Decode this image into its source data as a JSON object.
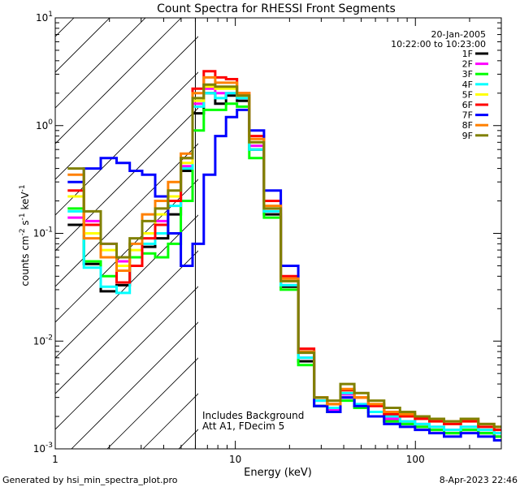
{
  "footer": {
    "generated_by": "Generated by hsi_min_spectra_plot.pro",
    "timestamp": "8-Apr-2023 22:46"
  },
  "chart_data": {
    "type": "line",
    "title": "Count Spectra for RHESSI Front Segments",
    "xlabel": "Energy (keV)",
    "ylabel_parts": [
      "counts cm",
      "-2",
      " s",
      "-1",
      " keV",
      "-1"
    ],
    "xscale": "log",
    "yscale": "log",
    "xlim": [
      1,
      300
    ],
    "ylim": [
      0.001,
      10
    ],
    "x_ticks": [
      {
        "v": 1,
        "label": "1"
      },
      {
        "v": 10,
        "label": "10"
      },
      {
        "v": 100,
        "label": "100"
      }
    ],
    "y_ticks": [
      {
        "v": 0.001,
        "base": "10",
        "exp": "-3"
      },
      {
        "v": 0.01,
        "base": "10",
        "exp": "-2"
      },
      {
        "v": 0.1,
        "base": "10",
        "exp": "-1"
      },
      {
        "v": 1,
        "base": "10",
        "exp": "0"
      },
      {
        "v": 10,
        "base": "10",
        "exp": "1"
      }
    ],
    "date": "20-Jan-2005",
    "time_range": "10:22:00 to 10:23:00",
    "annotations": [
      "Includes Background",
      "Att A1, FDecim 5"
    ],
    "hatched_region_below_keV": 6,
    "legend_position": "top-right",
    "series": [
      {
        "name": "1F",
        "color": "#000000",
        "points": [
          [
            1.3,
            0.12
          ],
          [
            1.6,
            0.052
          ],
          [
            2.0,
            0.029
          ],
          [
            2.4,
            0.033
          ],
          [
            2.8,
            0.05
          ],
          [
            3.3,
            0.075
          ],
          [
            3.9,
            0.09
          ],
          [
            4.6,
            0.15
          ],
          [
            5.4,
            0.38
          ],
          [
            6.2,
            1.3
          ],
          [
            7.2,
            2.0
          ],
          [
            8.3,
            1.6
          ],
          [
            9.5,
            1.9
          ],
          [
            11,
            1.7
          ],
          [
            13,
            0.6
          ],
          [
            16,
            0.15
          ],
          [
            20,
            0.032
          ],
          [
            25,
            0.0065
          ],
          [
            30,
            0.0025
          ],
          [
            35,
            0.0022
          ],
          [
            42,
            0.003
          ],
          [
            50,
            0.0025
          ],
          [
            60,
            0.0022
          ],
          [
            75,
            0.0018
          ],
          [
            90,
            0.0017
          ],
          [
            110,
            0.0016
          ],
          [
            130,
            0.0015
          ],
          [
            160,
            0.0014
          ],
          [
            200,
            0.0015
          ],
          [
            250,
            0.0014
          ],
          [
            300,
            0.0013
          ]
        ]
      },
      {
        "name": "2F",
        "color": "#ff00ff",
        "points": [
          [
            1.3,
            0.14
          ],
          [
            1.6,
            0.13
          ],
          [
            2.0,
            0.08
          ],
          [
            2.4,
            0.055
          ],
          [
            2.8,
            0.06
          ],
          [
            3.3,
            0.1
          ],
          [
            3.9,
            0.13
          ],
          [
            4.6,
            0.2
          ],
          [
            5.4,
            0.42
          ],
          [
            6.2,
            1.6
          ],
          [
            7.2,
            2.2
          ],
          [
            8.3,
            2.0
          ],
          [
            9.5,
            2.0
          ],
          [
            11,
            1.8
          ],
          [
            13,
            0.65
          ],
          [
            16,
            0.16
          ],
          [
            20,
            0.033
          ],
          [
            25,
            0.007
          ],
          [
            30,
            0.0028
          ],
          [
            35,
            0.0023
          ],
          [
            42,
            0.0032
          ],
          [
            50,
            0.0026
          ],
          [
            60,
            0.0022
          ],
          [
            75,
            0.0019
          ],
          [
            90,
            0.0018
          ],
          [
            110,
            0.0017
          ],
          [
            130,
            0.0016
          ],
          [
            160,
            0.0015
          ],
          [
            200,
            0.0016
          ],
          [
            250,
            0.0015
          ],
          [
            300,
            0.0014
          ]
        ]
      },
      {
        "name": "3F",
        "color": "#00ff00",
        "points": [
          [
            1.3,
            0.17
          ],
          [
            1.6,
            0.055
          ],
          [
            2.0,
            0.04
          ],
          [
            2.4,
            0.045
          ],
          [
            2.8,
            0.06
          ],
          [
            3.3,
            0.065
          ],
          [
            3.9,
            0.06
          ],
          [
            4.6,
            0.08
          ],
          [
            5.4,
            0.2
          ],
          [
            6.2,
            0.9
          ],
          [
            7.2,
            1.4
          ],
          [
            8.3,
            1.4
          ],
          [
            9.5,
            1.6
          ],
          [
            11,
            1.5
          ],
          [
            13,
            0.5
          ],
          [
            16,
            0.14
          ],
          [
            20,
            0.03
          ],
          [
            25,
            0.006
          ],
          [
            30,
            0.0025
          ],
          [
            35,
            0.0022
          ],
          [
            42,
            0.0028
          ],
          [
            50,
            0.0024
          ],
          [
            60,
            0.002
          ],
          [
            75,
            0.0018
          ],
          [
            90,
            0.0017
          ],
          [
            110,
            0.0016
          ],
          [
            130,
            0.0015
          ],
          [
            160,
            0.0014
          ],
          [
            200,
            0.0015
          ],
          [
            250,
            0.0014
          ],
          [
            300,
            0.0013
          ]
        ]
      },
      {
        "name": "4F",
        "color": "#00ffff",
        "points": [
          [
            1.3,
            0.16
          ],
          [
            1.6,
            0.048
          ],
          [
            2.0,
            0.032
          ],
          [
            2.4,
            0.028
          ],
          [
            2.8,
            0.05
          ],
          [
            3.3,
            0.08
          ],
          [
            3.9,
            0.1
          ],
          [
            4.6,
            0.18
          ],
          [
            5.4,
            0.4
          ],
          [
            6.2,
            1.5
          ],
          [
            7.2,
            2.0
          ],
          [
            8.3,
            1.8
          ],
          [
            9.5,
            2.0
          ],
          [
            11,
            1.8
          ],
          [
            13,
            0.6
          ],
          [
            16,
            0.16
          ],
          [
            20,
            0.033
          ],
          [
            25,
            0.007
          ],
          [
            30,
            0.0028
          ],
          [
            35,
            0.0024
          ],
          [
            42,
            0.0033
          ],
          [
            50,
            0.0026
          ],
          [
            60,
            0.0022
          ],
          [
            75,
            0.002
          ],
          [
            90,
            0.0018
          ],
          [
            110,
            0.0017
          ],
          [
            130,
            0.0016
          ],
          [
            160,
            0.0015
          ],
          [
            200,
            0.0016
          ],
          [
            250,
            0.0015
          ],
          [
            300,
            0.0014
          ]
        ]
      },
      {
        "name": "5F",
        "color": "#ffff00",
        "points": [
          [
            1.3,
            0.22
          ],
          [
            1.6,
            0.1
          ],
          [
            2.0,
            0.07
          ],
          [
            2.4,
            0.05
          ],
          [
            2.8,
            0.07
          ],
          [
            3.3,
            0.1
          ],
          [
            3.9,
            0.15
          ],
          [
            4.6,
            0.22
          ],
          [
            5.4,
            0.45
          ],
          [
            6.2,
            1.7
          ],
          [
            7.2,
            2.3
          ],
          [
            8.3,
            2.2
          ],
          [
            9.5,
            2.2
          ],
          [
            11,
            1.9
          ],
          [
            13,
            0.7
          ],
          [
            16,
            0.17
          ],
          [
            20,
            0.036
          ],
          [
            25,
            0.008
          ],
          [
            30,
            0.003
          ],
          [
            35,
            0.0026
          ],
          [
            42,
            0.0035
          ],
          [
            50,
            0.003
          ],
          [
            60,
            0.0026
          ],
          [
            75,
            0.0022
          ],
          [
            90,
            0.002
          ],
          [
            110,
            0.0019
          ],
          [
            130,
            0.0018
          ],
          [
            160,
            0.0017
          ],
          [
            200,
            0.0018
          ],
          [
            250,
            0.0016
          ],
          [
            300,
            0.0015
          ]
        ]
      },
      {
        "name": "6F",
        "color": "#ff0000",
        "points": [
          [
            1.3,
            0.25
          ],
          [
            1.6,
            0.12
          ],
          [
            2.0,
            0.06
          ],
          [
            2.4,
            0.035
          ],
          [
            2.8,
            0.05
          ],
          [
            3.3,
            0.09
          ],
          [
            3.9,
            0.12
          ],
          [
            4.6,
            0.2
          ],
          [
            5.4,
            0.5
          ],
          [
            6.2,
            2.2
          ],
          [
            7.2,
            3.2
          ],
          [
            8.3,
            2.8
          ],
          [
            9.5,
            2.7
          ],
          [
            11,
            2.0
          ],
          [
            13,
            0.8
          ],
          [
            16,
            0.2
          ],
          [
            20,
            0.04
          ],
          [
            25,
            0.0085
          ],
          [
            30,
            0.003
          ],
          [
            35,
            0.0026
          ],
          [
            42,
            0.0035
          ],
          [
            50,
            0.003
          ],
          [
            60,
            0.0025
          ],
          [
            75,
            0.0021
          ],
          [
            90,
            0.002
          ],
          [
            110,
            0.0019
          ],
          [
            130,
            0.0018
          ],
          [
            160,
            0.0017
          ],
          [
            200,
            0.0018
          ],
          [
            250,
            0.0016
          ],
          [
            300,
            0.0015
          ]
        ]
      },
      {
        "name": "7F",
        "color": "#0000ff",
        "points": [
          [
            1.3,
            0.3
          ],
          [
            1.6,
            0.4
          ],
          [
            2.0,
            0.5
          ],
          [
            2.4,
            0.45
          ],
          [
            2.8,
            0.38
          ],
          [
            3.3,
            0.35
          ],
          [
            3.9,
            0.22
          ],
          [
            4.6,
            0.1
          ],
          [
            5.4,
            0.05
          ],
          [
            6.2,
            0.08
          ],
          [
            7.2,
            0.35
          ],
          [
            8.3,
            0.8
          ],
          [
            9.5,
            1.2
          ],
          [
            11,
            1.4
          ],
          [
            13,
            0.9
          ],
          [
            16,
            0.25
          ],
          [
            20,
            0.05
          ],
          [
            25,
            0.008
          ],
          [
            30,
            0.0025
          ],
          [
            35,
            0.0022
          ],
          [
            42,
            0.003
          ],
          [
            50,
            0.0025
          ],
          [
            60,
            0.002
          ],
          [
            75,
            0.0017
          ],
          [
            90,
            0.0016
          ],
          [
            110,
            0.0015
          ],
          [
            130,
            0.0014
          ],
          [
            160,
            0.0013
          ],
          [
            200,
            0.0014
          ],
          [
            250,
            0.0013
          ],
          [
            300,
            0.0012
          ]
        ]
      },
      {
        "name": "8F",
        "color": "#ff8000",
        "points": [
          [
            1.3,
            0.35
          ],
          [
            1.6,
            0.09
          ],
          [
            2.0,
            0.06
          ],
          [
            2.4,
            0.045
          ],
          [
            2.8,
            0.08
          ],
          [
            3.3,
            0.15
          ],
          [
            3.9,
            0.2
          ],
          [
            4.6,
            0.3
          ],
          [
            5.4,
            0.55
          ],
          [
            6.2,
            2.0
          ],
          [
            7.2,
            2.8
          ],
          [
            8.3,
            2.5
          ],
          [
            9.5,
            2.5
          ],
          [
            11,
            2.0
          ],
          [
            13,
            0.75
          ],
          [
            16,
            0.18
          ],
          [
            20,
            0.038
          ],
          [
            25,
            0.008
          ],
          [
            30,
            0.003
          ],
          [
            35,
            0.0026
          ],
          [
            42,
            0.0036
          ],
          [
            50,
            0.003
          ],
          [
            60,
            0.0026
          ],
          [
            75,
            0.0022
          ],
          [
            90,
            0.0021
          ],
          [
            110,
            0.002
          ],
          [
            130,
            0.0019
          ],
          [
            160,
            0.0018
          ],
          [
            200,
            0.0019
          ],
          [
            250,
            0.0017
          ],
          [
            300,
            0.0016
          ]
        ]
      },
      {
        "name": "9F",
        "color": "#808000",
        "points": [
          [
            1.3,
            0.4
          ],
          [
            1.6,
            0.16
          ],
          [
            2.0,
            0.08
          ],
          [
            2.4,
            0.06
          ],
          [
            2.8,
            0.09
          ],
          [
            3.3,
            0.13
          ],
          [
            3.9,
            0.17
          ],
          [
            4.6,
            0.25
          ],
          [
            5.4,
            0.5
          ],
          [
            6.2,
            1.8
          ],
          [
            7.2,
            2.4
          ],
          [
            8.3,
            2.3
          ],
          [
            9.5,
            2.3
          ],
          [
            11,
            1.9
          ],
          [
            13,
            0.7
          ],
          [
            16,
            0.17
          ],
          [
            20,
            0.036
          ],
          [
            25,
            0.0078
          ],
          [
            30,
            0.003
          ],
          [
            35,
            0.0028
          ],
          [
            42,
            0.004
          ],
          [
            50,
            0.0033
          ],
          [
            60,
            0.0028
          ],
          [
            75,
            0.0024
          ],
          [
            90,
            0.0022
          ],
          [
            110,
            0.002
          ],
          [
            130,
            0.0019
          ],
          [
            160,
            0.0018
          ],
          [
            200,
            0.0019
          ],
          [
            250,
            0.0017
          ],
          [
            300,
            0.0016
          ]
        ]
      }
    ]
  }
}
